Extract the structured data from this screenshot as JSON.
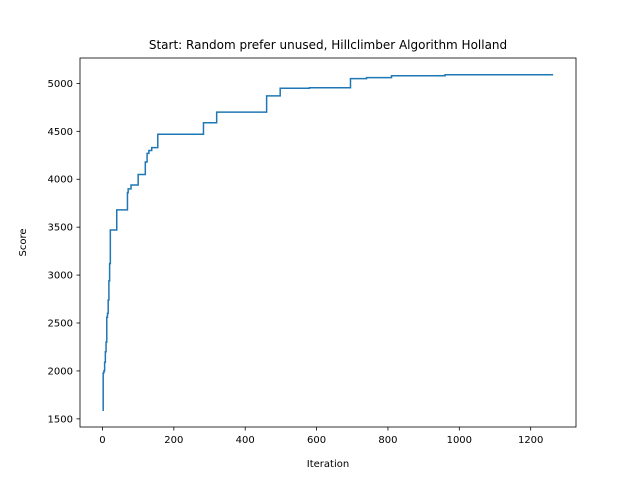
{
  "chart_data": {
    "type": "line",
    "title": "Start: Random prefer unused, Hillclimber Algorithm Holland",
    "xlabel": "Iteration",
    "ylabel": "Score",
    "xlim": [
      -63,
      1327
    ],
    "ylim": [
      1415,
      5265
    ],
    "xticks": [
      0,
      200,
      400,
      600,
      800,
      1000,
      1200
    ],
    "yticks": [
      1500,
      2000,
      2500,
      3000,
      3500,
      4000,
      4500,
      5000
    ],
    "grid": false,
    "line_color": "#1f77b4",
    "series": [
      {
        "step": true,
        "x": [
          0,
          2,
          4,
          6,
          8,
          10,
          12,
          14,
          16,
          18,
          20,
          22,
          25,
          30,
          40,
          44,
          70,
          72,
          75,
          80,
          85,
          100,
          120,
          125,
          130,
          138,
          150,
          155,
          280,
          283,
          320,
          458,
          460,
          498,
          520,
          580,
          695,
          740,
          800,
          810,
          960,
          1263
        ],
        "y": [
          1590,
          1980,
          2000,
          2090,
          2200,
          2300,
          2560,
          2600,
          2740,
          2940,
          3120,
          3470,
          3470,
          3470,
          3680,
          3680,
          3860,
          3900,
          3900,
          3940,
          3940,
          4050,
          4180,
          4270,
          4300,
          4330,
          4330,
          4470,
          4470,
          4590,
          4700,
          4700,
          4870,
          4950,
          4950,
          4955,
          5050,
          5060,
          5060,
          5080,
          5090,
          5090
        ]
      }
    ]
  }
}
